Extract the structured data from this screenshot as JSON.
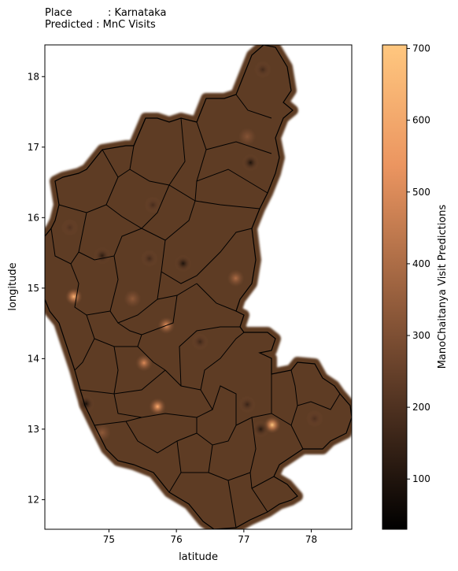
{
  "header": {
    "line1": "Place           : Karnataka",
    "line2": "Predicted : MnC Visits"
  },
  "chart_data": {
    "type": "heatmap",
    "title": "",
    "xlabel": "latitude",
    "ylabel": "longitude",
    "xlim": [
      74.05,
      78.6
    ],
    "ylim": [
      11.58,
      18.45
    ],
    "xticks": [
      "75",
      "76",
      "77",
      "78"
    ],
    "yticks": [
      "12",
      "13",
      "14",
      "15",
      "16",
      "17",
      "18"
    ],
    "colorbar": {
      "label": "ManoChaitanya Visit Predictions",
      "range": [
        30,
        705
      ],
      "ticks": [
        "100",
        "200",
        "300",
        "400",
        "500",
        "600",
        "700"
      ],
      "colormap": "copper"
    },
    "base_level": 280,
    "hotspots": [
      {
        "x": 74.48,
        "y": 14.88,
        "value": 640
      },
      {
        "x": 75.85,
        "y": 14.47,
        "value": 540
      },
      {
        "x": 75.52,
        "y": 13.94,
        "value": 500
      },
      {
        "x": 75.72,
        "y": 13.32,
        "value": 610
      },
      {
        "x": 77.42,
        "y": 13.06,
        "value": 700
      },
      {
        "x": 76.88,
        "y": 15.14,
        "value": 400
      },
      {
        "x": 74.9,
        "y": 12.95,
        "value": 330
      },
      {
        "x": 77.05,
        "y": 17.15,
        "value": 310
      },
      {
        "x": 74.9,
        "y": 15.46,
        "value": 120
      },
      {
        "x": 76.1,
        "y": 15.35,
        "value": 90
      },
      {
        "x": 75.6,
        "y": 15.42,
        "value": 170
      },
      {
        "x": 75.65,
        "y": 16.18,
        "value": 180
      },
      {
        "x": 74.42,
        "y": 15.86,
        "value": 200
      },
      {
        "x": 77.1,
        "y": 16.78,
        "value": 90
      },
      {
        "x": 77.28,
        "y": 18.1,
        "value": 170
      },
      {
        "x": 76.35,
        "y": 14.24,
        "value": 160
      },
      {
        "x": 74.66,
        "y": 13.36,
        "value": 80
      },
      {
        "x": 77.05,
        "y": 13.35,
        "value": 150
      },
      {
        "x": 78.05,
        "y": 13.15,
        "value": 190
      },
      {
        "x": 77.25,
        "y": 13.0,
        "value": 110
      },
      {
        "x": 75.35,
        "y": 14.85,
        "value": 330
      }
    ],
    "colors": {
      "outline": "#000000",
      "border_glow": "#5d3a22"
    }
  }
}
